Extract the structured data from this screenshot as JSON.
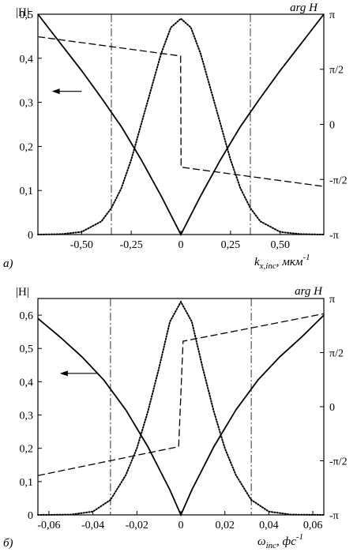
{
  "chart_data": [
    {
      "type": "line",
      "panel_label": "а)",
      "left_axis_label": "|H|",
      "right_axis_label": "arg H",
      "xlabel_main": "k",
      "xlabel_sub": "x,inc",
      "xlabel_unit": ", мкм",
      "xlabel_exp": "-1",
      "xlim": [
        -0.72,
        0.72
      ],
      "ylim_left": [
        0,
        0.5
      ],
      "ylim_right": [
        -3.14159,
        3.14159
      ],
      "x_ticks": [
        {
          "v": -0.5,
          "label": "-0,50"
        },
        {
          "v": -0.25,
          "label": "-0,25"
        },
        {
          "v": 0,
          "label": "0"
        },
        {
          "v": 0.25,
          "label": "0,25"
        },
        {
          "v": 0.5,
          "label": "0,50"
        }
      ],
      "y_ticks_left": [
        {
          "v": 0,
          "label": "0"
        },
        {
          "v": 0.1,
          "label": "0,1"
        },
        {
          "v": 0.2,
          "label": "0,2"
        },
        {
          "v": 0.3,
          "label": "0,3"
        },
        {
          "v": 0.4,
          "label": "0,4"
        },
        {
          "v": 0.5,
          "label": "0,5"
        }
      ],
      "y_ticks_right": [
        {
          "v": 3.14159,
          "label": "π"
        },
        {
          "v": 1.5708,
          "label": "π/2"
        },
        {
          "v": 0,
          "label": "0"
        },
        {
          "v": -1.5708,
          "label": "-π/2"
        },
        {
          "v": -3.14159,
          "label": "-π"
        }
      ],
      "vlines": [
        -0.35,
        0.35
      ],
      "arrow": {
        "from": [
          -0.5,
          0.325
        ],
        "to": [
          -0.65,
          0.325
        ]
      },
      "series": [
        {
          "style": "solid",
          "axis": "left",
          "x": [
            -0.72,
            -0.6,
            -0.5,
            -0.4,
            -0.3,
            -0.2,
            -0.1,
            0,
            0.1,
            0.2,
            0.3,
            0.4,
            0.5,
            0.6,
            0.72
          ],
          "y": [
            0.5,
            0.43,
            0.372,
            0.31,
            0.245,
            0.17,
            0.088,
            0,
            0.088,
            0.17,
            0.245,
            0.31,
            0.372,
            0.43,
            0.5
          ]
        },
        {
          "style": "dotted",
          "axis": "left",
          "x": [
            -0.72,
            -0.6,
            -0.5,
            -0.4,
            -0.35,
            -0.3,
            -0.25,
            -0.2,
            -0.15,
            -0.1,
            -0.05,
            0,
            0.05,
            0.1,
            0.15,
            0.2,
            0.25,
            0.3,
            0.35,
            0.4,
            0.5,
            0.6,
            0.72
          ],
          "y": [
            0,
            0.001,
            0.006,
            0.03,
            0.06,
            0.105,
            0.17,
            0.25,
            0.33,
            0.41,
            0.47,
            0.49,
            0.47,
            0.41,
            0.33,
            0.25,
            0.17,
            0.105,
            0.06,
            0.03,
            0.006,
            0.001,
            0
          ]
        },
        {
          "style": "dashed",
          "axis": "right",
          "x": [
            -0.72,
            -0.001,
            0.001,
            0.72
          ],
          "y": [
            2.5,
            1.95,
            -1.22,
            -1.77
          ]
        }
      ]
    },
    {
      "type": "line",
      "panel_label": "б)",
      "left_axis_label": "|H|",
      "right_axis_label": "arg H",
      "xlabel_main": "ω",
      "xlabel_sub": "inc",
      "xlabel_unit": ", фс",
      "xlabel_exp": "-1",
      "xlim": [
        -0.065,
        0.065
      ],
      "ylim_left": [
        0,
        0.65
      ],
      "ylim_right": [
        -3.14159,
        3.14159
      ],
      "x_ticks": [
        {
          "v": -0.06,
          "label": "-0,06"
        },
        {
          "v": -0.04,
          "label": "-0,04"
        },
        {
          "v": -0.02,
          "label": "-0,02"
        },
        {
          "v": 0,
          "label": "0"
        },
        {
          "v": 0.02,
          "label": "0,02"
        },
        {
          "v": 0.04,
          "label": "0,04"
        },
        {
          "v": 0.06,
          "label": "0,06"
        }
      ],
      "y_ticks_left": [
        {
          "v": 0,
          "label": "0"
        },
        {
          "v": 0.1,
          "label": "0,1"
        },
        {
          "v": 0.2,
          "label": "0,2"
        },
        {
          "v": 0.3,
          "label": "0,3"
        },
        {
          "v": 0.4,
          "label": "0,4"
        },
        {
          "v": 0.5,
          "label": "0,5"
        },
        {
          "v": 0.6,
          "label": "0,6"
        }
      ],
      "y_ticks_right": [
        {
          "v": 3.14159,
          "label": "π"
        },
        {
          "v": 1.5708,
          "label": "π/2"
        },
        {
          "v": 0,
          "label": "0"
        },
        {
          "v": -1.5708,
          "label": "-π/2"
        },
        {
          "v": -3.14159,
          "label": "-π"
        }
      ],
      "vlines": [
        -0.032,
        0.032
      ],
      "arrow": {
        "from": [
          -0.038,
          0.425
        ],
        "to": [
          -0.055,
          0.425
        ]
      },
      "series": [
        {
          "style": "solid",
          "axis": "left",
          "x": [
            -0.065,
            -0.055,
            -0.045,
            -0.035,
            -0.025,
            -0.015,
            -0.005,
            0,
            0.005,
            0.015,
            0.025,
            0.035,
            0.045,
            0.055,
            0.065
          ],
          "y": [
            0.59,
            0.535,
            0.475,
            0.405,
            0.315,
            0.205,
            0.075,
            0,
            0.075,
            0.205,
            0.315,
            0.405,
            0.475,
            0.535,
            0.6
          ]
        },
        {
          "style": "dotted",
          "axis": "left",
          "x": [
            -0.065,
            -0.05,
            -0.04,
            -0.032,
            -0.025,
            -0.02,
            -0.015,
            -0.01,
            -0.005,
            0,
            0.005,
            0.01,
            0.015,
            0.02,
            0.025,
            0.032,
            0.04,
            0.05,
            0.065
          ],
          "y": [
            0,
            0.001,
            0.01,
            0.045,
            0.12,
            0.2,
            0.31,
            0.44,
            0.58,
            0.64,
            0.58,
            0.44,
            0.31,
            0.2,
            0.12,
            0.045,
            0.01,
            0.001,
            0
          ]
        },
        {
          "style": "dashed",
          "axis": "right",
          "x": [
            -0.065,
            -0.001,
            0.001,
            0.065
          ],
          "y": [
            -2.0,
            -1.16,
            1.9,
            2.7
          ]
        }
      ]
    }
  ]
}
